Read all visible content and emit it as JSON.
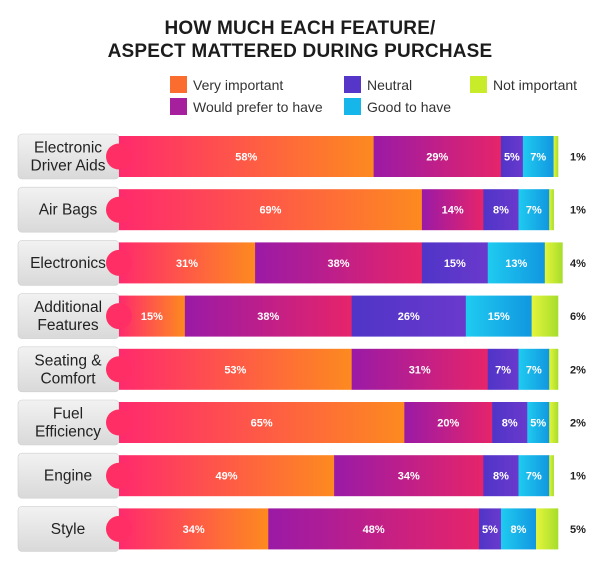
{
  "title_line1": "HOW MUCH EACH FEATURE/",
  "title_line2": "ASPECT MATTERED DURING PURCHASE",
  "legend": [
    {
      "label": "Very important",
      "color": "#fb6d2e"
    },
    {
      "label": "Would prefer to have",
      "color": "#a61f9c"
    },
    {
      "label": "Neutral",
      "color": "#5635c9"
    },
    {
      "label": "Good to have",
      "color": "#16b6ea"
    },
    {
      "label": "Not important",
      "color": "#c8ec2a"
    }
  ],
  "chart_data": {
    "type": "bar",
    "orientation": "horizontal",
    "stacked": true,
    "title": "HOW MUCH EACH FEATURE/ ASPECT MATTERED DURING PURCHASE",
    "categories": [
      [
        "Electronic",
        "Driver Aids"
      ],
      [
        "Air Bags"
      ],
      [
        "Electronics"
      ],
      [
        "Additional",
        "Features"
      ],
      [
        "Seating &",
        "Comfort"
      ],
      [
        "Fuel",
        "Efficiency"
      ],
      [
        "Engine"
      ],
      [
        "Style"
      ]
    ],
    "series": [
      {
        "name": "Very important",
        "values": [
          58,
          69,
          31,
          15,
          53,
          65,
          49,
          34
        ]
      },
      {
        "name": "Would prefer to have",
        "values": [
          29,
          14,
          38,
          38,
          31,
          20,
          34,
          48
        ]
      },
      {
        "name": "Neutral",
        "values": [
          5,
          8,
          15,
          26,
          7,
          8,
          8,
          5
        ]
      },
      {
        "name": "Good to have",
        "values": [
          7,
          7,
          13,
          15,
          7,
          5,
          7,
          8
        ]
      },
      {
        "name": "Not important",
        "values": [
          1,
          1,
          4,
          6,
          2,
          2,
          1,
          5
        ]
      }
    ],
    "unit": "%"
  }
}
